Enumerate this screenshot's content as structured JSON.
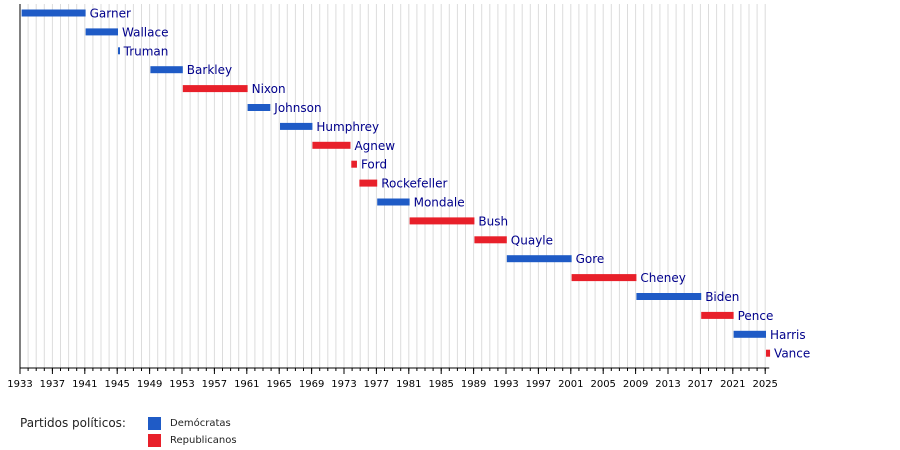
{
  "chart_data": {
    "type": "bar",
    "subtype": "timeline",
    "title": "",
    "xlabel": "",
    "ylabel": "",
    "xlim": [
      1933,
      2025.5
    ],
    "x_ticks": [
      1933,
      1937,
      1941,
      1945,
      1949,
      1953,
      1957,
      1961,
      1965,
      1969,
      1973,
      1977,
      1981,
      1985,
      1989,
      1993,
      1997,
      2001,
      2005,
      2009,
      2013,
      2017,
      2021,
      2025
    ],
    "grid": true,
    "legend_position": "bottom-left",
    "series": [
      {
        "name": "Demócratas",
        "color": "#1f5bc6"
      },
      {
        "name": "Republicanos",
        "color": "#e8202a"
      }
    ],
    "entries": [
      {
        "label": "Garner",
        "start": 1933.2,
        "end": 1941.1,
        "party": "Demócratas"
      },
      {
        "label": "Wallace",
        "start": 1941.1,
        "end": 1945.1,
        "party": "Demócratas"
      },
      {
        "label": "Truman",
        "start": 1945.1,
        "end": 1945.3,
        "party": "Demócratas"
      },
      {
        "label": "Barkley",
        "start": 1949.1,
        "end": 1953.1,
        "party": "Demócratas"
      },
      {
        "label": "Nixon",
        "start": 1953.1,
        "end": 1961.1,
        "party": "Republicanos"
      },
      {
        "label": "Johnson",
        "start": 1961.1,
        "end": 1963.9,
        "party": "Demócratas"
      },
      {
        "label": "Humphrey",
        "start": 1965.1,
        "end": 1969.1,
        "party": "Demócratas"
      },
      {
        "label": "Agnew",
        "start": 1969.1,
        "end": 1973.8,
        "party": "Republicanos"
      },
      {
        "label": "Ford",
        "start": 1973.9,
        "end": 1974.6,
        "party": "Republicanos"
      },
      {
        "label": "Rockefeller",
        "start": 1974.9,
        "end": 1977.1,
        "party": "Republicanos"
      },
      {
        "label": "Mondale",
        "start": 1977.1,
        "end": 1981.1,
        "party": "Demócratas"
      },
      {
        "label": "Bush",
        "start": 1981.1,
        "end": 1989.1,
        "party": "Republicanos"
      },
      {
        "label": "Quayle",
        "start": 1989.1,
        "end": 1993.1,
        "party": "Republicanos"
      },
      {
        "label": "Gore",
        "start": 1993.1,
        "end": 2001.1,
        "party": "Demócratas"
      },
      {
        "label": "Cheney",
        "start": 2001.1,
        "end": 2009.1,
        "party": "Republicanos"
      },
      {
        "label": "Biden",
        "start": 2009.1,
        "end": 2017.1,
        "party": "Demócratas"
      },
      {
        "label": "Pence",
        "start": 2017.1,
        "end": 2021.1,
        "party": "Republicanos"
      },
      {
        "label": "Harris",
        "start": 2021.1,
        "end": 2025.1,
        "party": "Demócratas"
      },
      {
        "label": "Vance",
        "start": 2025.1,
        "end": 2025.6,
        "party": "Republicanos"
      }
    ]
  },
  "legend": {
    "title": "Partidos políticos:",
    "items": [
      {
        "label": "Demócratas",
        "color": "#1f5bc6"
      },
      {
        "label": "Republicanos",
        "color": "#e8202a"
      }
    ]
  }
}
